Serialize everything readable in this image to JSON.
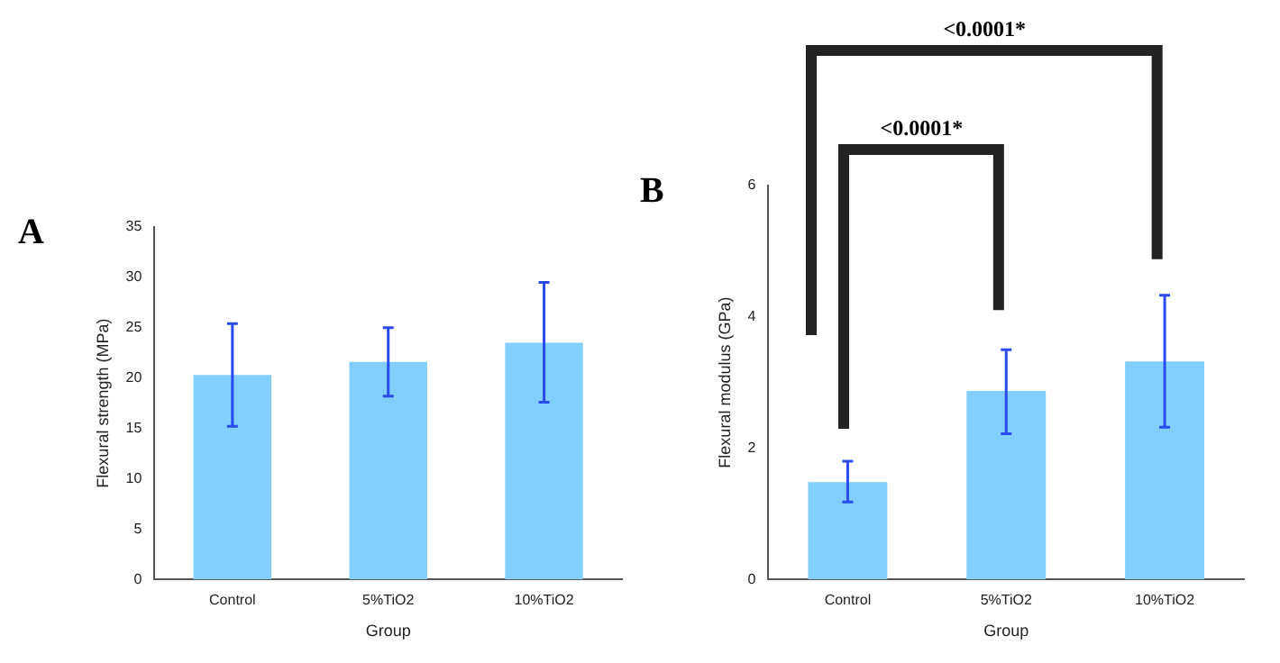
{
  "chart_data": [
    {
      "type": "bar",
      "title": "A",
      "xlabel": "Group",
      "ylabel": "Flexural strength (MPa)",
      "categories": [
        "Control",
        "5%TiO2",
        "10%TiO2"
      ],
      "values": [
        20.3,
        21.6,
        23.5
      ],
      "errors": [
        [
          15.2,
          25.4
        ],
        [
          18.2,
          25.0
        ],
        [
          17.6,
          29.5
        ]
      ],
      "color": "#82cefe",
      "ylim": [
        0,
        35
      ],
      "yticks": [
        0,
        5,
        10,
        15,
        20,
        25,
        30,
        35
      ],
      "grid": false,
      "legend": false
    },
    {
      "type": "bar",
      "title": "B",
      "xlabel": "Group",
      "ylabel": "Flexural modulus (GPa)",
      "categories": [
        "Control",
        "5%TiO2",
        "10%TiO2"
      ],
      "values": [
        1.48,
        2.87,
        3.32
      ],
      "errors": [
        [
          1.18,
          1.8
        ],
        [
          2.22,
          3.5
        ],
        [
          2.32,
          4.33
        ]
      ],
      "color": "#82cefe",
      "ylim": [
        0,
        6
      ],
      "yticks": [
        0,
        2,
        4,
        6
      ],
      "grid": false,
      "legend": false,
      "annotations": [
        "<0.0001*",
        "<0.0001*"
      ]
    }
  ]
}
